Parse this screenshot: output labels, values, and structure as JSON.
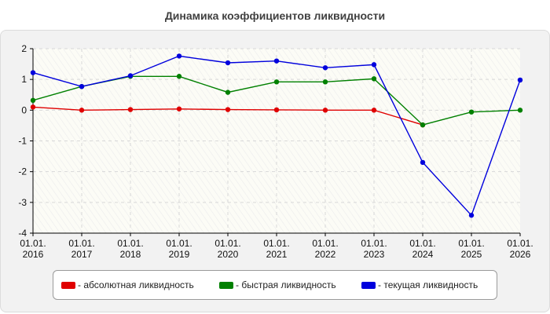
{
  "title": "Динамика коэффициентов ликвидности",
  "colors": {
    "absolute": "#e00000",
    "quick": "#008000",
    "current": "#0000dd"
  },
  "chart_data": {
    "type": "line",
    "title": "Динамика коэффициентов ликвидности",
    "xlabel": "",
    "ylabel": "",
    "categories": [
      [
        "01.01.",
        "2016"
      ],
      [
        "01.01.",
        "2017"
      ],
      [
        "01.01.",
        "2018"
      ],
      [
        "01.01.",
        "2019"
      ],
      [
        "01.01.",
        "2020"
      ],
      [
        "01.01.",
        "2021"
      ],
      [
        "01.01.",
        "2022"
      ],
      [
        "01.01.",
        "2023"
      ],
      [
        "01.01.",
        "2024"
      ],
      [
        "01.01.",
        "2025"
      ],
      [
        "01.01.",
        "2026"
      ]
    ],
    "ylim": [
      -4,
      2
    ],
    "yticks": [
      "2",
      "1",
      "0",
      "-1",
      "-2",
      "-3",
      "-4"
    ],
    "grid": true,
    "legend_position": "bottom",
    "series": [
      {
        "name": "- абсолютная ликвидность",
        "color": "#e00000",
        "values": [
          0.1,
          0.0,
          0.02,
          0.04,
          0.02,
          0.01,
          0.0,
          0.0,
          -0.48,
          null,
          null
        ]
      },
      {
        "name": "- быстрая ликвидность",
        "color": "#008000",
        "values": [
          0.32,
          0.77,
          1.1,
          1.1,
          0.58,
          0.92,
          0.92,
          1.02,
          -0.48,
          -0.06,
          0.0
        ]
      },
      {
        "name": "- текущая ликвидность",
        "color": "#0000dd",
        "values": [
          1.22,
          0.77,
          1.12,
          1.76,
          1.54,
          1.6,
          1.38,
          1.48,
          -1.7,
          -3.42,
          0.98
        ]
      }
    ]
  }
}
